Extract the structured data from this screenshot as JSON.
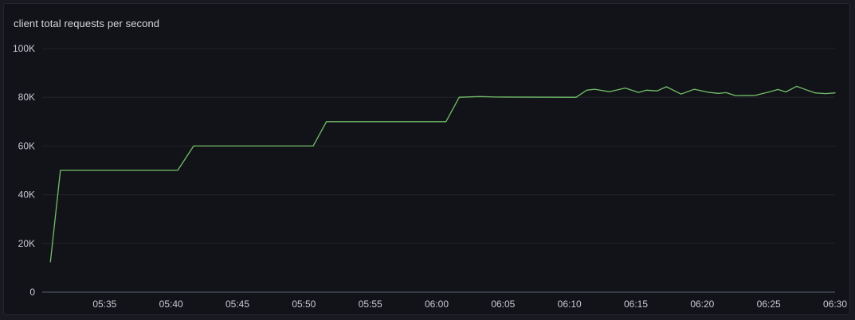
{
  "panel": {
    "title": "client total requests per second"
  },
  "chart_data": {
    "type": "line",
    "title": "client total requests per second",
    "xlabel": "",
    "ylabel": "",
    "legend": "none",
    "grid": "horizontal-only",
    "x_range": [
      "05:30:18",
      "06:30:00"
    ],
    "y_range": [
      0,
      100000
    ],
    "y_axis": {
      "ticks": [
        {
          "value": 0,
          "label": "0"
        },
        {
          "value": 20000,
          "label": "20K"
        },
        {
          "value": 40000,
          "label": "40K"
        },
        {
          "value": 60000,
          "label": "60K"
        },
        {
          "value": 80000,
          "label": "80K"
        },
        {
          "value": 100000,
          "label": "100K"
        }
      ]
    },
    "x_axis": {
      "ticks": [
        "05:35",
        "05:40",
        "05:45",
        "05:50",
        "05:55",
        "06:00",
        "06:05",
        "06:10",
        "06:15",
        "06:20",
        "06:25",
        "06:30"
      ]
    },
    "series": [
      {
        "name": "client total requests per second",
        "color": "#73bf69",
        "points": [
          [
            "05:30:55",
            12500
          ],
          [
            "05:31:40",
            50000
          ],
          [
            "05:40:30",
            50000
          ],
          [
            "05:41:42",
            60000
          ],
          [
            "05:50:42",
            60000
          ],
          [
            "05:51:42",
            70000
          ],
          [
            "06:00:42",
            70000
          ],
          [
            "06:01:42",
            80000
          ],
          [
            "06:03:12",
            80300
          ],
          [
            "06:04:30",
            80100
          ],
          [
            "06:10:30",
            80000
          ],
          [
            "06:11:18",
            82900
          ],
          [
            "06:11:54",
            83300
          ],
          [
            "06:13:00",
            82300
          ],
          [
            "06:14:12",
            83800
          ],
          [
            "06:15:12",
            82000
          ],
          [
            "06:15:48",
            82900
          ],
          [
            "06:16:36",
            82600
          ],
          [
            "06:17:18",
            84300
          ],
          [
            "06:18:24",
            81300
          ],
          [
            "06:19:24",
            83300
          ],
          [
            "06:20:24",
            82100
          ],
          [
            "06:21:12",
            81600
          ],
          [
            "06:21:48",
            81900
          ],
          [
            "06:22:30",
            80700
          ],
          [
            "06:24:00",
            80800
          ],
          [
            "06:25:06",
            82300
          ],
          [
            "06:25:42",
            83200
          ],
          [
            "06:26:18",
            82200
          ],
          [
            "06:27:06",
            84500
          ],
          [
            "06:27:54",
            82900
          ],
          [
            "06:28:30",
            81800
          ],
          [
            "06:29:18",
            81500
          ],
          [
            "06:30:00",
            81800
          ]
        ]
      }
    ],
    "colors": {
      "series_green": "#73bf69",
      "axis_text": "#c9cad3",
      "panel_background": "#121318",
      "page_background": "#181921"
    }
  }
}
